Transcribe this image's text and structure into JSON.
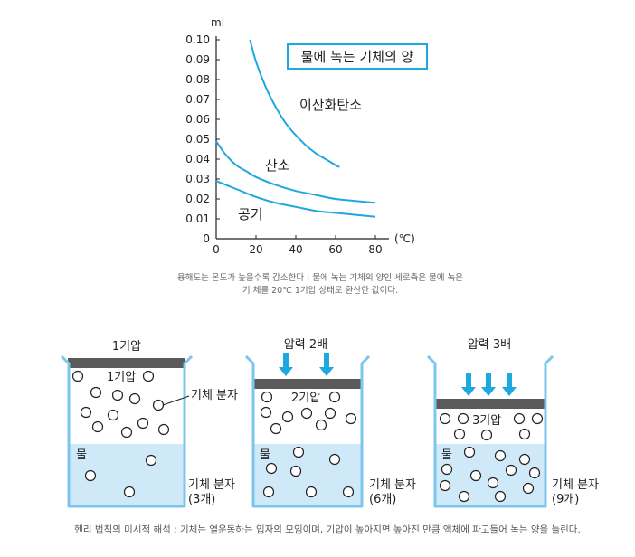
{
  "chart_data": {
    "type": "line",
    "title": "물에 녹는 기체의 양",
    "ylabel": "ml",
    "xlabel": "(℃)",
    "xlim": [
      0,
      85
    ],
    "ylim": [
      0,
      0.1
    ],
    "x_ticks": [
      "0",
      "20",
      "40",
      "60",
      "80"
    ],
    "y_ticks": [
      "0",
      "0.01",
      "0.02",
      "0.03",
      "0.04",
      "0.05",
      "0.06",
      "0.07",
      "0.08",
      "0.09",
      "0.10"
    ],
    "series": [
      {
        "name": "이산화탄소",
        "x": [
          17,
          20,
          25,
          30,
          35,
          40,
          45,
          50,
          55,
          60,
          62
        ],
        "y": [
          0.1,
          0.089,
          0.076,
          0.066,
          0.058,
          0.052,
          0.047,
          0.043,
          0.04,
          0.037,
          0.036
        ]
      },
      {
        "name": "산소",
        "x": [
          0,
          2,
          5,
          10,
          15,
          20,
          30,
          40,
          50,
          60,
          70,
          80
        ],
        "y": [
          0.049,
          0.046,
          0.042,
          0.037,
          0.034,
          0.031,
          0.027,
          0.024,
          0.022,
          0.02,
          0.019,
          0.018
        ]
      },
      {
        "name": "공기",
        "x": [
          0,
          10,
          20,
          30,
          40,
          50,
          60,
          70,
          80
        ],
        "y": [
          0.029,
          0.025,
          0.021,
          0.018,
          0.016,
          0.014,
          0.013,
          0.012,
          0.011
        ]
      }
    ]
  },
  "caption1_line1": "용해도는 온도가 높을수록 감소한다 : 물에 녹는 기체의 양인 세로축은 물에 녹은",
  "caption1_line2": "기 체를 20℃ 1기압 상태로 환산한 값이다.",
  "beakers": [
    {
      "top_label": "1기압",
      "inner_label": "1기압",
      "water_label": "물",
      "molecule_label": "기체 분자",
      "dissolved_label": "기체 분자",
      "dissolved_count": "(3개)"
    },
    {
      "top_label": "압력 2배",
      "inner_label": "2기압",
      "water_label": "물",
      "dissolved_label": "기체 분자",
      "dissolved_count": "(6개)"
    },
    {
      "top_label": "압력 3배",
      "inner_label": "3기압",
      "water_label": "물",
      "dissolved_label": "기체 분자",
      "dissolved_count": "(9개)"
    }
  ],
  "caption2": "헨리 법칙의 미시적 해석 : 기체는 열운동하는 입자의 모임이며, 기압이 높아지면 높아진 만큼 액체에 파고들어 녹는 양을 늘린다.",
  "colors": {
    "curve": "#1fa8e0",
    "water": "#cfe9f8",
    "lid": "#5a5a5a",
    "arrow": "#1fa8e0",
    "beaker": "#7cc6ee"
  }
}
